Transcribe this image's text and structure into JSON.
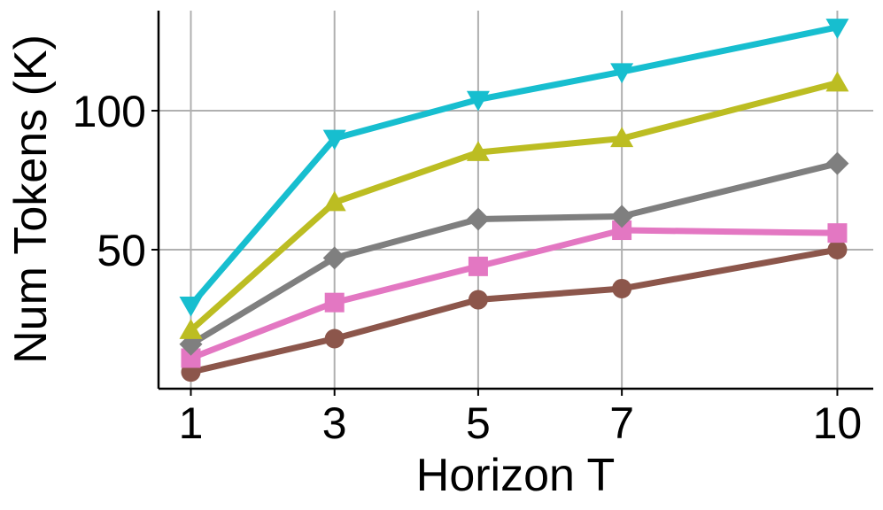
{
  "chart_data": {
    "type": "line",
    "title": "",
    "xlabel": "Horizon T",
    "ylabel": "Num Tokens (K)",
    "x": [
      1,
      3,
      5,
      7,
      10
    ],
    "xticks": [
      "1",
      "3",
      "5",
      "7",
      "10"
    ],
    "yticks": [
      "50",
      "100"
    ],
    "ylim": [
      0,
      136
    ],
    "xlim": [
      0.55,
      10.5
    ],
    "grid": true,
    "legend": "none",
    "series": [
      {
        "color": "#8c564b",
        "marker": "circle",
        "values": [
          6,
          18,
          32,
          36,
          50
        ]
      },
      {
        "color": "#e377c2",
        "marker": "square",
        "values": [
          11,
          31,
          44,
          57,
          56
        ]
      },
      {
        "color": "#7f7f7f",
        "marker": "diamond",
        "values": [
          16,
          47,
          61,
          62,
          81
        ]
      },
      {
        "color": "#bcbd22",
        "marker": "triangle-up",
        "values": [
          21,
          67,
          85,
          90,
          110
        ]
      },
      {
        "color": "#17becf",
        "marker": "triangle-down",
        "values": [
          30,
          90,
          104,
          114,
          130
        ]
      }
    ]
  }
}
